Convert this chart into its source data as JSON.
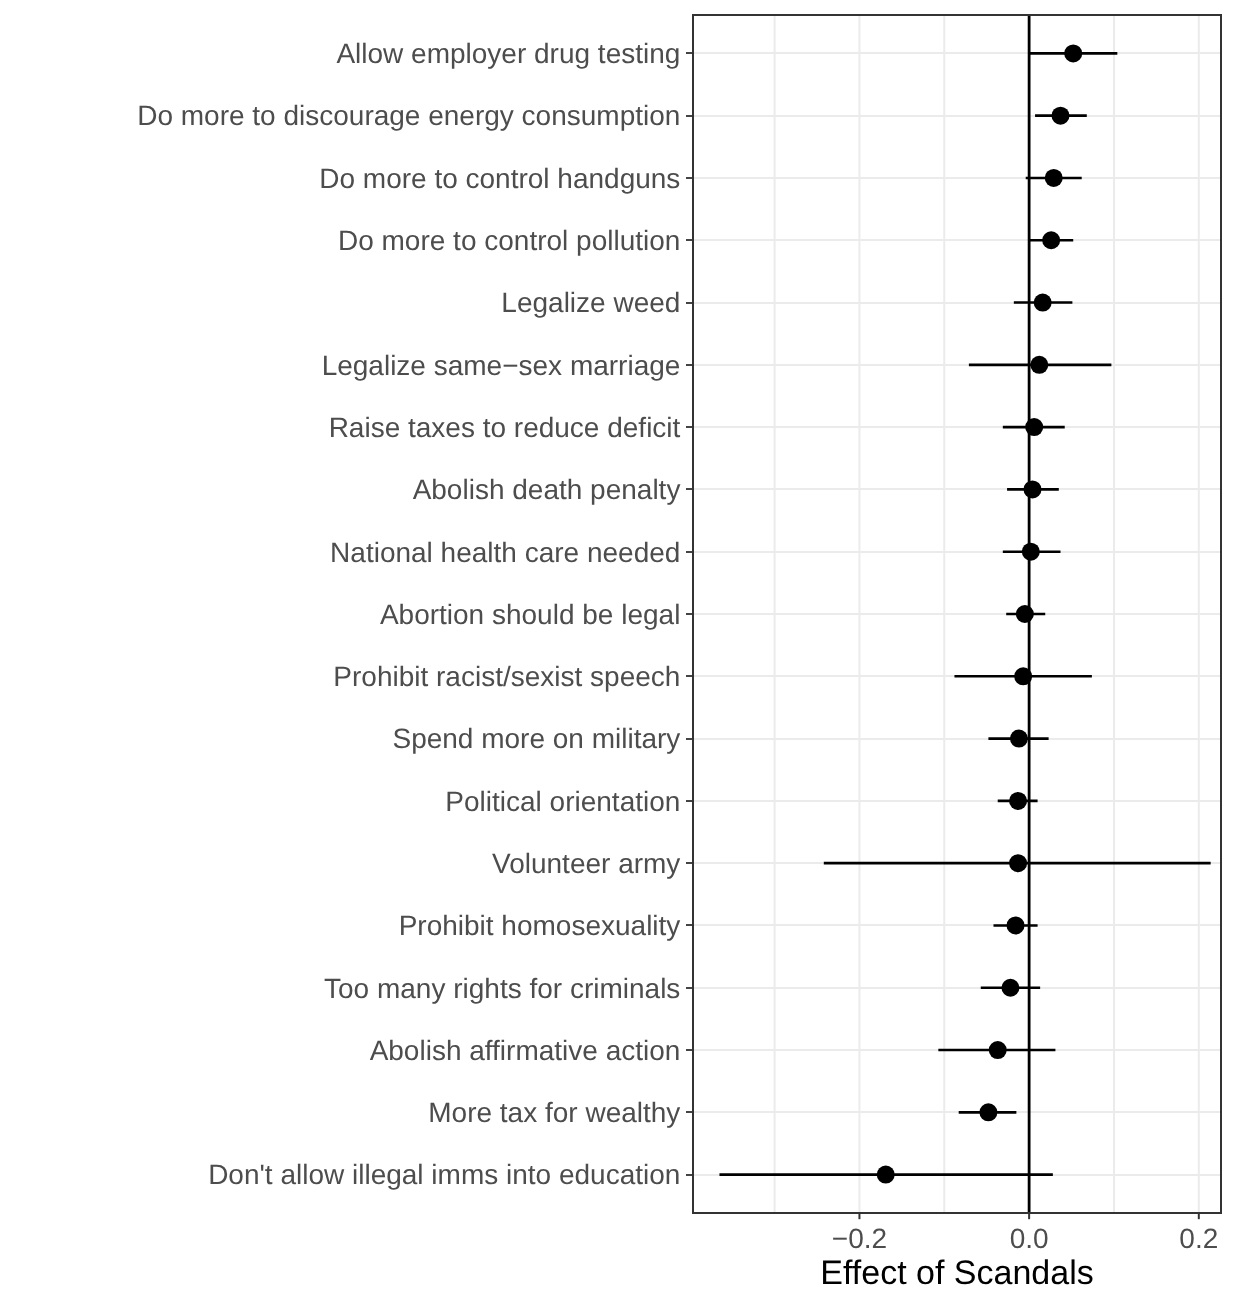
{
  "chart_data": {
    "type": "scatter",
    "xlabel": "Effect of Scandals",
    "orientation": "horizontal",
    "marker": "circle",
    "grid": true,
    "categories": [
      "Allow employer drug testing",
      "Do more to discourage energy consumption",
      "Do more to control handguns",
      "Do more to control pollution",
      "Legalize weed",
      "Legalize same−sex marriage",
      "Raise taxes to reduce deficit",
      "Abolish death penalty",
      "National health care needed",
      "Abortion should be legal",
      "Prohibit racist/sexist speech",
      "Spend more on military",
      "Political orientation",
      "Volunteer army",
      "Prohibit homosexuality",
      "Too many rights for criminals",
      "Abolish affirmative action",
      "More tax for wealthy",
      "Don't allow illegal imms into education"
    ],
    "series": [
      {
        "color": "#000000",
        "values": [
          0.052,
          0.037,
          0.029,
          0.026,
          0.016,
          0.012,
          0.006,
          0.004,
          0.002,
          -0.005,
          -0.007,
          -0.012,
          -0.013,
          -0.013,
          -0.016,
          -0.022,
          -0.037,
          -0.048,
          -0.169
        ],
        "errors": [
          [
            0.0,
            0.104
          ],
          [
            0.007,
            0.068
          ],
          [
            -0.004,
            0.062
          ],
          [
            0.0,
            0.052
          ],
          [
            -0.018,
            0.051
          ],
          [
            -0.071,
            0.097
          ],
          [
            -0.031,
            0.042
          ],
          [
            -0.026,
            0.035
          ],
          [
            -0.031,
            0.037
          ],
          [
            -0.027,
            0.019
          ],
          [
            -0.088,
            0.074
          ],
          [
            -0.048,
            0.023
          ],
          [
            -0.037,
            0.01
          ],
          [
            -0.242,
            0.214
          ],
          [
            -0.042,
            0.01
          ],
          [
            -0.057,
            0.013
          ],
          [
            -0.107,
            0.031
          ],
          [
            -0.083,
            -0.015
          ],
          [
            -0.365,
            0.028
          ]
        ]
      }
    ],
    "xlim": [
      -0.395,
      0.225
    ],
    "xticks": [
      {
        "value": -0.3,
        "label": null
      },
      {
        "value": -0.2,
        "label": "−0.2"
      },
      {
        "value": -0.1,
        "label": null
      },
      {
        "value": 0.0,
        "label": "0.0"
      },
      {
        "value": 0.1,
        "label": null
      },
      {
        "value": 0.2,
        "label": "0.2"
      }
    ],
    "ref_lines": [
      {
        "axis": "x",
        "value": 0,
        "color": "#000000"
      }
    ]
  }
}
